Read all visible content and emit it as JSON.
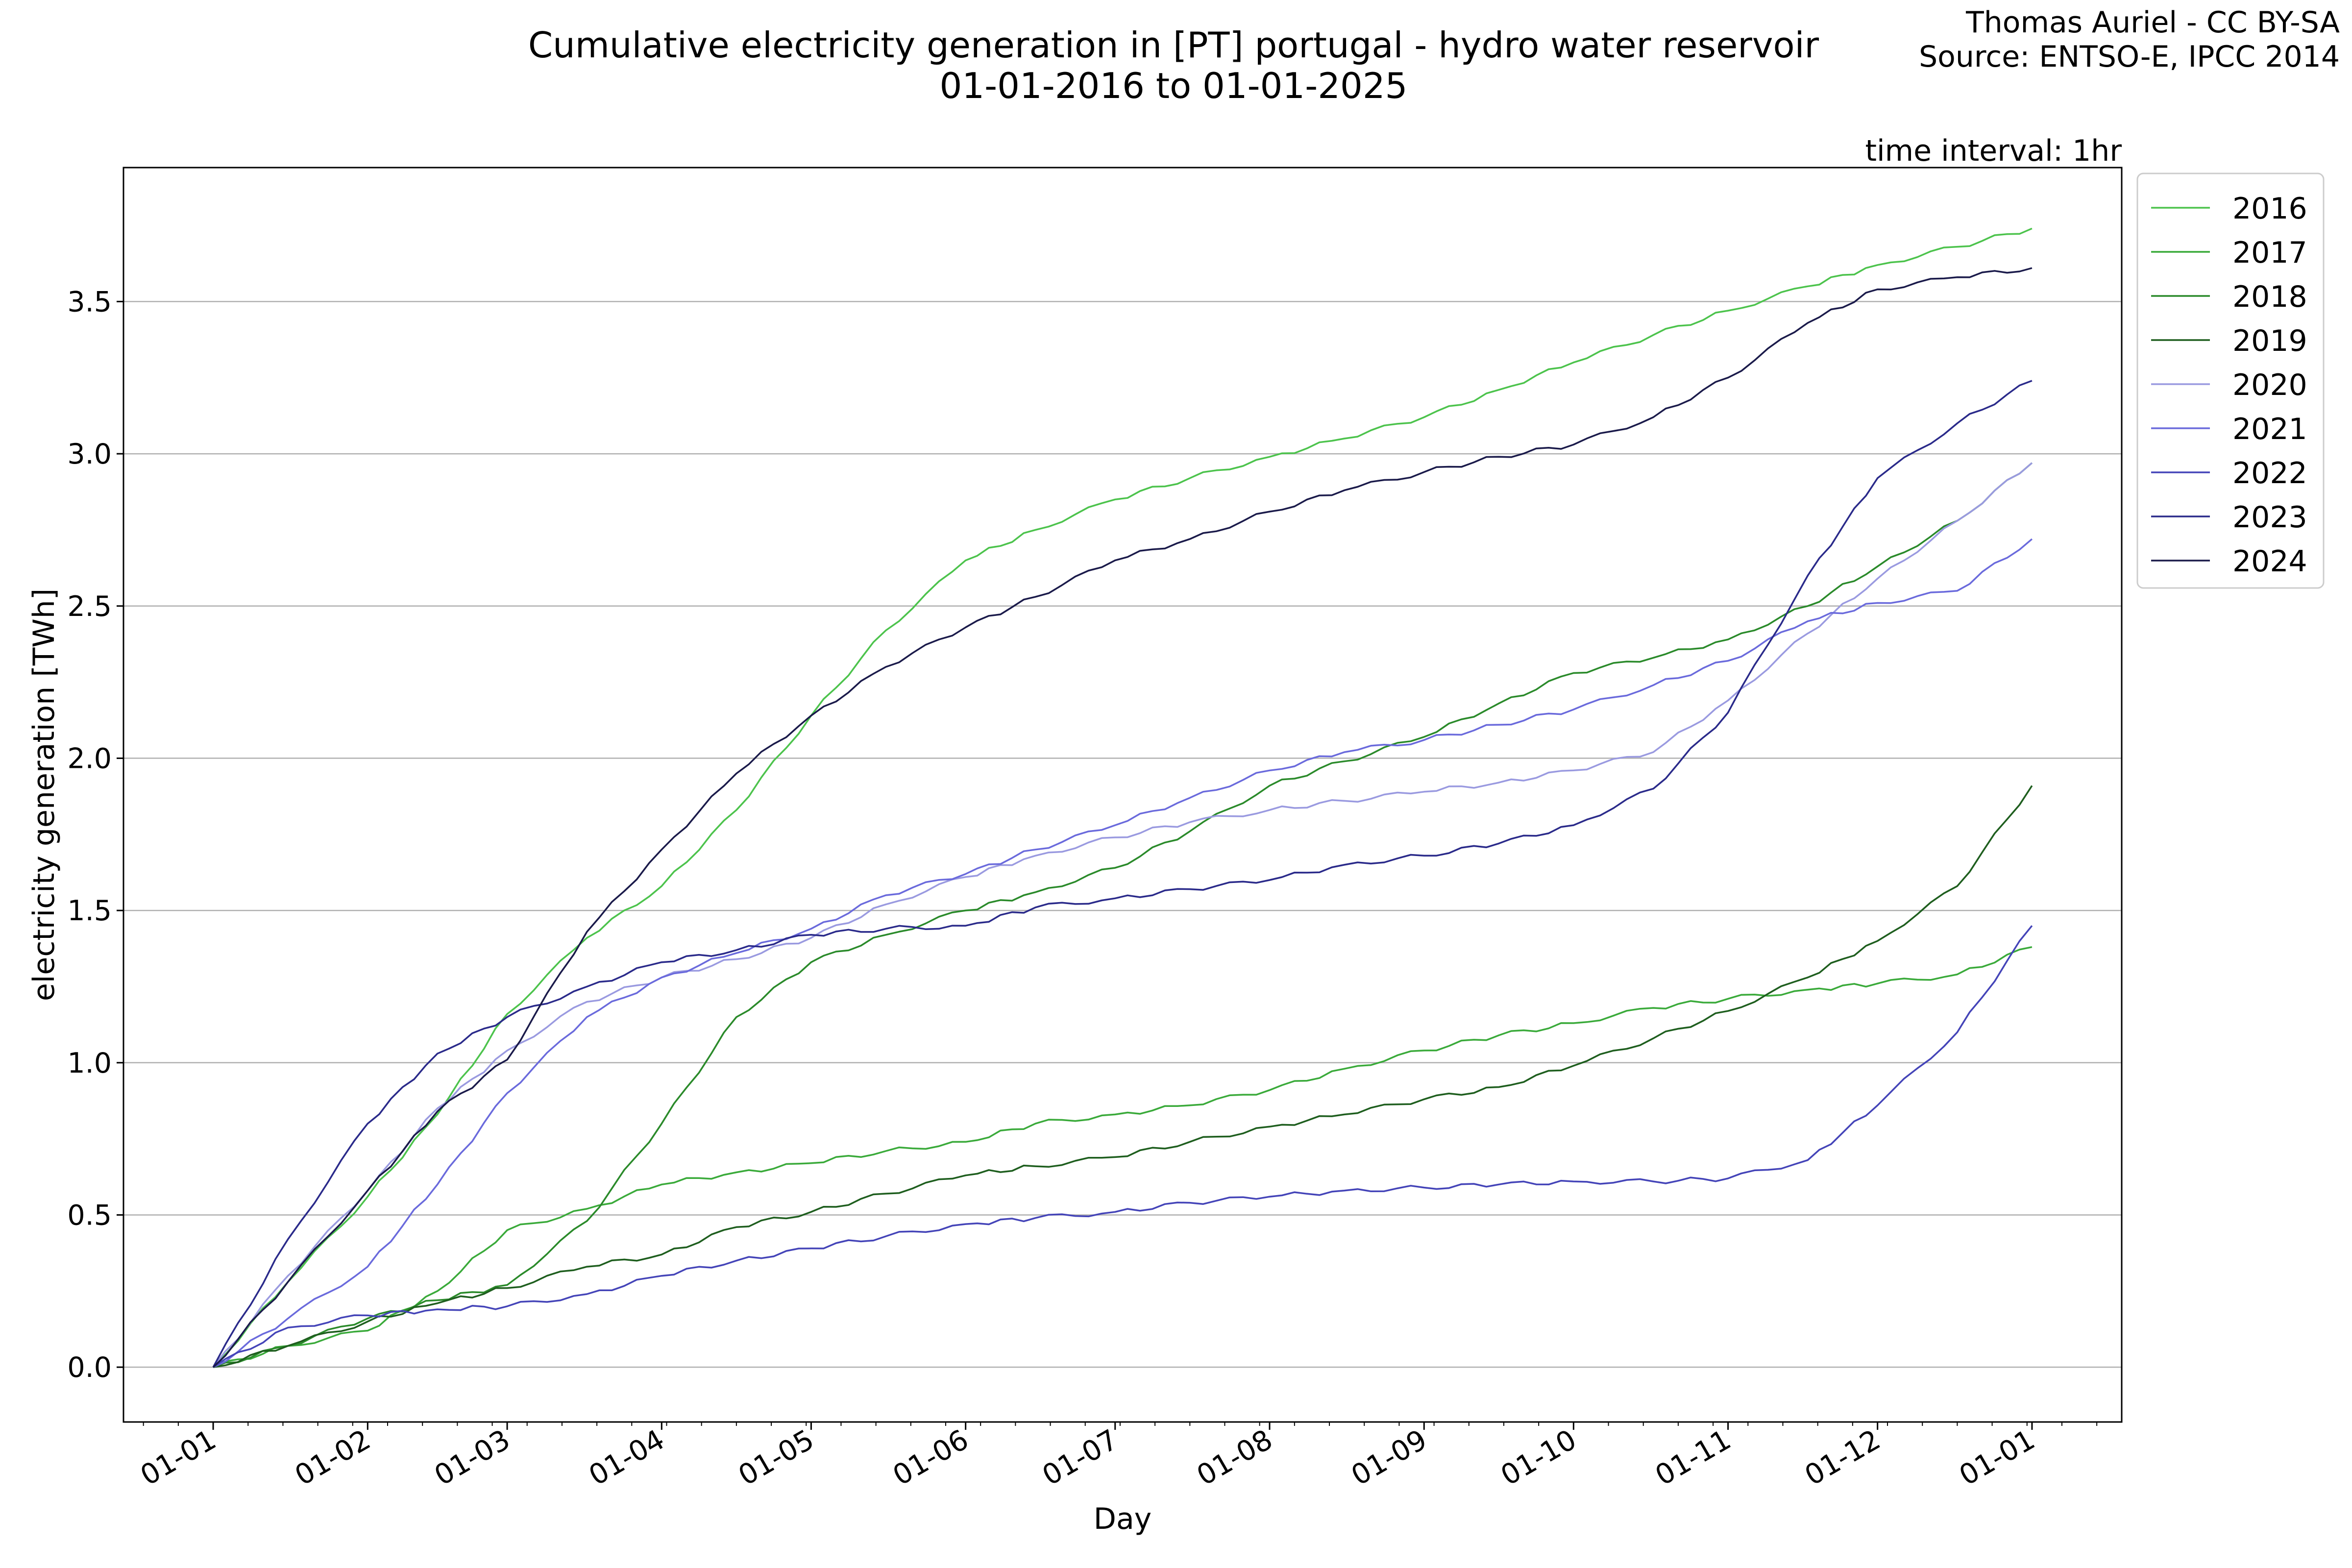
{
  "chart_data": {
    "type": "line",
    "title": "Cumulative electricity generation in [PT] portugal - hydro water reservoir",
    "subtitle": "01-01-2016 to 01-01-2025",
    "attribution": [
      "Thomas Auriel - CC BY-SA",
      "Source: ENTSO-E, IPCC 2014"
    ],
    "interval_note": "time interval: 1hr",
    "xlabel": "Day",
    "ylabel": "electricity generation [TWh]",
    "x_ticks": [
      "01-01",
      "01-02",
      "01-03",
      "01-04",
      "01-05",
      "01-06",
      "01-07",
      "01-08",
      "01-09",
      "01-10",
      "01-11",
      "01-12",
      "01-01"
    ],
    "x_tick_days": [
      0,
      31,
      59,
      90,
      120,
      151,
      181,
      212,
      243,
      273,
      304,
      334,
      365
    ],
    "xlim": [
      -18,
      383
    ],
    "y_ticks": [
      0.0,
      0.5,
      1.0,
      1.5,
      2.0,
      2.5,
      3.0,
      3.5
    ],
    "y_tick_labels": [
      "0.0",
      "0.5",
      "1.0",
      "1.5",
      "2.0",
      "2.5",
      "3.0",
      "3.5"
    ],
    "ylim": [
      -0.18,
      3.94
    ],
    "grid": "horizontal",
    "legend_position": "outside-top-right",
    "series": [
      {
        "name": "2016",
        "color": "#4cc34c",
        "x": [
          0,
          15,
          31,
          45,
          59,
          75,
          90,
          105,
          120,
          135,
          151,
          165,
          181,
          196,
          212,
          227,
          243,
          258,
          273,
          289,
          304,
          320,
          334,
          350,
          365
        ],
        "y": [
          0,
          0.28,
          0.56,
          0.83,
          1.16,
          1.41,
          1.58,
          1.83,
          2.14,
          2.42,
          2.65,
          2.75,
          2.85,
          2.92,
          2.99,
          3.05,
          3.12,
          3.21,
          3.3,
          3.39,
          3.47,
          3.55,
          3.62,
          3.68,
          3.74
        ]
      },
      {
        "name": "2017",
        "color": "#3aaa3a",
        "x": [
          0,
          15,
          31,
          45,
          59,
          75,
          90,
          105,
          120,
          135,
          151,
          165,
          181,
          196,
          212,
          227,
          243,
          258,
          273,
          289,
          304,
          320,
          334,
          350,
          365
        ],
        "y": [
          0,
          0.07,
          0.12,
          0.25,
          0.45,
          0.52,
          0.6,
          0.64,
          0.67,
          0.71,
          0.74,
          0.8,
          0.83,
          0.86,
          0.91,
          0.98,
          1.04,
          1.09,
          1.13,
          1.18,
          1.21,
          1.24,
          1.26,
          1.29,
          1.38
        ]
      },
      {
        "name": "2018",
        "color": "#2a8a2a",
        "x": [
          0,
          15,
          31,
          45,
          59,
          75,
          90,
          105,
          120,
          135,
          151,
          165,
          181,
          196,
          212,
          227,
          243,
          258,
          273,
          289,
          304,
          320,
          334,
          350,
          365
        ],
        "y": [
          0,
          0.07,
          0.16,
          0.22,
          0.27,
          0.48,
          0.8,
          1.15,
          1.33,
          1.42,
          1.5,
          1.56,
          1.64,
          1.76,
          1.91,
          1.99,
          2.07,
          2.18,
          2.28,
          2.33,
          2.39,
          2.5,
          2.63,
          2.78,
          2.97
        ]
      },
      {
        "name": "2019",
        "color": "#1e5e1e",
        "x": [
          0,
          15,
          31,
          45,
          59,
          75,
          90,
          105,
          120,
          135,
          151,
          165,
          181,
          196,
          212,
          227,
          243,
          258,
          273,
          289,
          304,
          320,
          334,
          350,
          365
        ],
        "y": [
          0,
          0.07,
          0.15,
          0.21,
          0.26,
          0.33,
          0.37,
          0.46,
          0.51,
          0.57,
          0.63,
          0.66,
          0.69,
          0.74,
          0.79,
          0.83,
          0.88,
          0.92,
          0.99,
          1.08,
          1.17,
          1.28,
          1.4,
          1.58,
          1.91
        ]
      },
      {
        "name": "2020",
        "color": "#9a9ae0",
        "x": [
          0,
          15,
          31,
          45,
          59,
          75,
          90,
          105,
          120,
          135,
          151,
          165,
          181,
          196,
          212,
          227,
          243,
          258,
          273,
          289,
          304,
          320,
          334,
          350,
          365
        ],
        "y": [
          0,
          0.3,
          0.58,
          0.85,
          1.04,
          1.2,
          1.28,
          1.34,
          1.41,
          1.52,
          1.61,
          1.68,
          1.74,
          1.79,
          1.83,
          1.86,
          1.89,
          1.92,
          1.96,
          2.02,
          2.19,
          2.41,
          2.59,
          2.78,
          2.97
        ]
      },
      {
        "name": "2021",
        "color": "#6a6adc",
        "x": [
          0,
          15,
          31,
          45,
          59,
          75,
          90,
          105,
          120,
          135,
          151,
          165,
          181,
          196,
          212,
          227,
          243,
          258,
          273,
          289,
          304,
          320,
          334,
          350,
          365
        ],
        "y": [
          0,
          0.16,
          0.33,
          0.6,
          0.9,
          1.15,
          1.28,
          1.36,
          1.44,
          1.55,
          1.62,
          1.7,
          1.78,
          1.87,
          1.96,
          2.02,
          2.06,
          2.11,
          2.16,
          2.24,
          2.32,
          2.45,
          2.51,
          2.55,
          2.72
        ]
      },
      {
        "name": "2022",
        "color": "#4444b8",
        "x": [
          0,
          15,
          31,
          45,
          59,
          75,
          90,
          105,
          120,
          135,
          151,
          165,
          181,
          196,
          212,
          227,
          243,
          258,
          273,
          289,
          304,
          320,
          334,
          350,
          365
        ],
        "y": [
          0,
          0.13,
          0.17,
          0.19,
          0.2,
          0.24,
          0.3,
          0.35,
          0.39,
          0.43,
          0.47,
          0.49,
          0.51,
          0.54,
          0.56,
          0.58,
          0.59,
          0.6,
          0.61,
          0.61,
          0.62,
          0.68,
          0.86,
          1.1,
          1.45
        ]
      },
      {
        "name": "2023",
        "color": "#2a2a8a",
        "x": [
          0,
          15,
          31,
          45,
          59,
          75,
          90,
          105,
          120,
          135,
          151,
          165,
          181,
          196,
          212,
          227,
          243,
          258,
          273,
          289,
          304,
          320,
          334,
          350,
          365
        ],
        "y": [
          0,
          0.42,
          0.8,
          1.03,
          1.15,
          1.25,
          1.33,
          1.37,
          1.42,
          1.44,
          1.45,
          1.51,
          1.54,
          1.57,
          1.6,
          1.65,
          1.68,
          1.72,
          1.78,
          1.9,
          2.15,
          2.6,
          2.92,
          3.1,
          3.24
        ]
      },
      {
        "name": "2024",
        "color": "#1a1a4a",
        "x": [
          0,
          15,
          31,
          45,
          59,
          75,
          90,
          105,
          120,
          135,
          151,
          165,
          181,
          196,
          212,
          227,
          243,
          258,
          273,
          289,
          304,
          320,
          334,
          350,
          365
        ],
        "y": [
          0,
          0.28,
          0.58,
          0.84,
          1.01,
          1.43,
          1.7,
          1.95,
          2.14,
          2.3,
          2.43,
          2.53,
          2.65,
          2.72,
          2.81,
          2.88,
          2.94,
          2.99,
          3.03,
          3.12,
          3.25,
          3.43,
          3.54,
          3.58,
          3.61
        ]
      }
    ]
  }
}
